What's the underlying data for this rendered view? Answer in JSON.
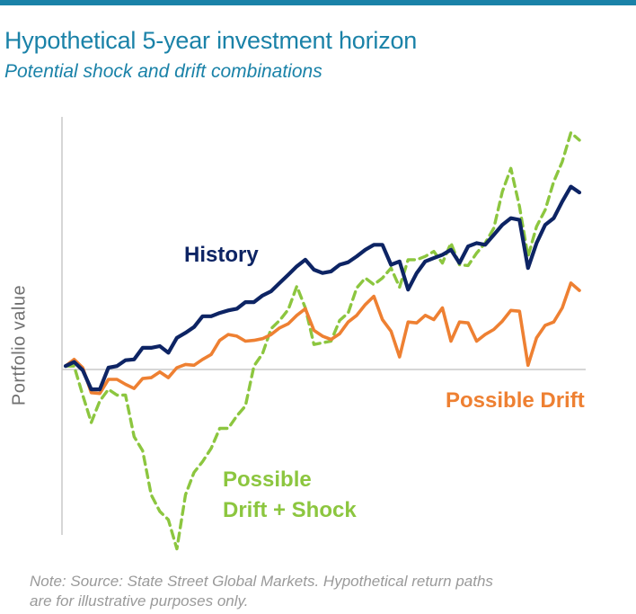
{
  "header": {
    "title": "Hypothetical 5-year investment horizon",
    "subtitle": "Potential shock and drift combinations"
  },
  "footer": {
    "note_line1": "Note:  Source: State Street Global Markets. Hypothetical return paths",
    "note_line2": "are for illustrative purposes only."
  },
  "colors": {
    "accent": "#1a82a8",
    "history": "#0d2464",
    "drift": "#ee8032",
    "shock": "#8cc63f"
  },
  "chart_data": {
    "type": "line",
    "ylabel": "Portfolio value",
    "ylim": [
      -2.0,
      3.0
    ],
    "grid": false,
    "baseline": 0,
    "x": [
      0,
      1,
      2,
      3,
      4,
      5,
      6,
      7,
      8,
      9,
      10,
      11,
      12,
      13,
      14,
      15,
      16,
      17,
      18,
      19,
      20,
      21,
      22,
      23,
      24,
      25,
      26,
      27,
      28,
      29,
      30,
      31,
      32,
      33,
      34,
      35,
      36,
      37,
      38,
      39,
      40,
      41,
      42,
      43,
      44,
      45,
      46,
      47,
      48,
      49,
      50,
      51,
      52,
      53,
      54,
      55,
      56,
      57,
      58,
      59,
      60
    ],
    "series": [
      {
        "name": "History",
        "values": [
          0.0,
          0.05,
          -0.05,
          -0.28,
          -0.28,
          -0.02,
          0.0,
          0.07,
          0.08,
          0.22,
          0.22,
          0.24,
          0.16,
          0.34,
          0.4,
          0.47,
          0.6,
          0.6,
          0.64,
          0.67,
          0.69,
          0.77,
          0.77,
          0.85,
          0.9,
          1.0,
          1.1,
          1.2,
          1.28,
          1.16,
          1.12,
          1.14,
          1.22,
          1.25,
          1.32,
          1.4,
          1.46,
          1.46,
          1.22,
          1.26,
          0.92,
          1.12,
          1.26,
          1.3,
          1.34,
          1.4,
          1.24,
          1.44,
          1.48,
          1.46,
          1.58,
          1.7,
          1.78,
          1.76,
          1.18,
          1.48,
          1.7,
          1.78,
          1.98,
          2.16,
          2.09
        ]
      },
      {
        "name": "Possible Drift",
        "values": [
          0.0,
          0.08,
          -0.02,
          -0.32,
          -0.33,
          -0.16,
          -0.16,
          -0.22,
          -0.27,
          -0.15,
          -0.14,
          -0.07,
          -0.14,
          -0.02,
          0.02,
          0.01,
          0.08,
          0.14,
          0.31,
          0.38,
          0.36,
          0.3,
          0.31,
          0.33,
          0.38,
          0.46,
          0.51,
          0.61,
          0.69,
          0.43,
          0.36,
          0.32,
          0.39,
          0.53,
          0.61,
          0.74,
          0.84,
          0.56,
          0.42,
          0.11,
          0.53,
          0.52,
          0.61,
          0.56,
          0.7,
          0.3,
          0.53,
          0.52,
          0.3,
          0.38,
          0.44,
          0.54,
          0.67,
          0.66,
          0.01,
          0.34,
          0.49,
          0.53,
          0.7,
          1.0,
          0.91
        ]
      },
      {
        "name": "Possible Drift + Shock",
        "values": [
          0.0,
          0.0,
          -0.35,
          -0.68,
          -0.42,
          -0.28,
          -0.35,
          -0.35,
          -0.85,
          -1.02,
          -1.55,
          -1.75,
          -1.85,
          -2.2,
          -1.55,
          -1.28,
          -1.15,
          -0.99,
          -0.75,
          -0.75,
          -0.6,
          -0.48,
          0.0,
          0.15,
          0.45,
          0.55,
          0.68,
          0.96,
          0.7,
          0.26,
          0.28,
          0.3,
          0.55,
          0.64,
          0.94,
          1.06,
          0.98,
          1.06,
          1.18,
          0.95,
          1.28,
          1.28,
          1.32,
          1.38,
          1.24,
          1.48,
          1.22,
          1.21,
          1.36,
          1.48,
          1.66,
          2.1,
          2.38,
          1.92,
          1.32,
          1.68,
          1.88,
          2.22,
          2.46,
          2.81,
          2.72
        ]
      }
    ]
  }
}
